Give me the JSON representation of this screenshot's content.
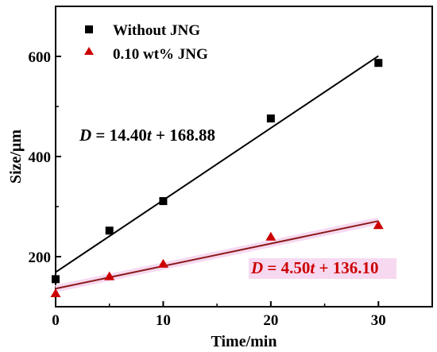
{
  "chart_data": {
    "type": "scatter",
    "xlabel": "Time/min",
    "ylabel": "Size/μm",
    "xlim": [
      0,
      35
    ],
    "ylim": [
      100,
      700
    ],
    "x_ticks": [
      0,
      10,
      20,
      30
    ],
    "y_ticks": [
      200,
      400,
      600
    ],
    "grid": false,
    "legend_position": "top-left",
    "series": [
      {
        "name": "Without JNG",
        "marker": "square",
        "color": "#000000",
        "x": [
          0,
          5,
          10,
          20,
          30
        ],
        "y": [
          155,
          252,
          311,
          476,
          587
        ],
        "fit": {
          "slope": 14.4,
          "intercept": 168.88,
          "color": "#000000",
          "equation": {
            "var": "D",
            "eq": " = 14.40",
            "t": "t",
            "rest": " + 168.88",
            "color": "#000000"
          }
        }
      },
      {
        "name": "0.10 wt% JNG",
        "marker": "triangle",
        "color": "#cc0000",
        "x": [
          0,
          5,
          10,
          20,
          30
        ],
        "y": [
          127,
          161,
          186,
          240,
          263
        ],
        "fit": {
          "slope": 4.5,
          "intercept": 136.1,
          "color": "#8b1a1a",
          "equation": {
            "var": "D",
            "eq": " = 4.50",
            "t": "t",
            "rest": " + 136.10",
            "color": "#cc0000"
          }
        }
      }
    ]
  }
}
